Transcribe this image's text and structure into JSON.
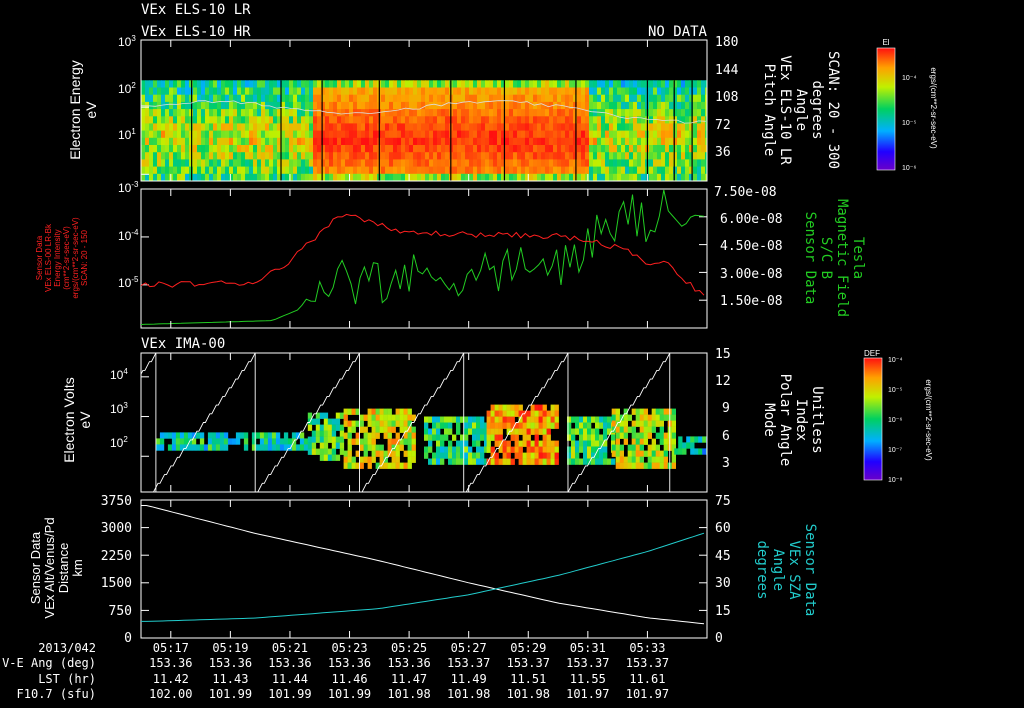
{
  "colors": {
    "background": "#000000",
    "axis": "#ffffff",
    "red": "#ff2020",
    "green": "#22cc22",
    "cyan": "#22cccc",
    "white": "#ffffff"
  },
  "chart_data": [
    {
      "panel": "els-spectrogram",
      "type": "heatmap",
      "title_lines": [
        "VEx ELS-10 LR",
        "VEx ELS-10 HR"
      ],
      "status": "NO DATA",
      "ylabel": [
        "Electron Energy",
        "eV"
      ],
      "yticks": [
        {
          "base": "10",
          "exp": "1"
        },
        {
          "base": "10",
          "exp": "2"
        },
        {
          "base": "10",
          "exp": "3"
        }
      ],
      "right_ticks": [
        "180",
        "144",
        "108",
        "72",
        "36"
      ],
      "right_label": [
        "Pitch Angle",
        "VEx ELS-10 LR",
        "Angle",
        "degrees",
        "SCAN: 20 - 300"
      ],
      "colorbar": {
        "title": "El",
        "label": "ergs/(cm**2-sr-sec-eV)",
        "ticks": [
          "10⁻⁴",
          "10⁻⁵",
          "10⁻⁶"
        ]
      },
      "time_range": [
        "05:16",
        "05:35"
      ],
      "energy_range_log10": [
        0.9,
        2.4
      ],
      "enhanced_interval": [
        "05:21:40",
        "05:31:00"
      ]
    },
    {
      "panel": "energy-intensity-mag",
      "type": "line",
      "left_ticks": [
        {
          "base": "10",
          "exp": "-3"
        },
        {
          "base": "10",
          "exp": "-4"
        },
        {
          "base": "10",
          "exp": "-5"
        }
      ],
      "left_label": [
        "Sensor Data",
        "VEx ELS-00 LR-Bk",
        "Energy Intensity",
        "(cm**2-sr-sec-eV)",
        "ergs/(cm**2-sr-sec-eV)",
        "SCAN: 20 - 150"
      ],
      "right_ticks": [
        "7.50e-08",
        "6.00e-08",
        "4.50e-08",
        "3.00e-08",
        "1.50e-08"
      ],
      "right_label": [
        "Sensor Data",
        "S/C B",
        "Magnetic Field",
        "Tesla"
      ],
      "series": [
        {
          "name": "Energy Intensity (red)",
          "axis": "left",
          "units": "log10",
          "points": [
            [
              5.27,
              -5.0
            ],
            [
              5.33,
              -4.95
            ],
            [
              5.35,
              -4.5
            ],
            [
              5.37,
              -3.8
            ],
            [
              5.38,
              -3.5
            ],
            [
              5.39,
              -3.6
            ],
            [
              5.41,
              -3.9
            ],
            [
              5.45,
              -3.95
            ],
            [
              5.5,
              -3.98
            ],
            [
              5.52,
              -4.1
            ],
            [
              5.54,
              -4.3
            ],
            [
              5.55,
              -4.6
            ],
            [
              5.56,
              -4.5
            ],
            [
              5.57,
              -4.9
            ],
            [
              5.585,
              -5.3
            ]
          ]
        },
        {
          "name": "Magnetic Field (green)",
          "axis": "right",
          "units": "Tesla",
          "points": [
            [
              5.27,
              2e-09
            ],
            [
              5.34,
              4e-09
            ],
            [
              5.355,
              1e-08
            ],
            [
              5.37,
              3e-08
            ],
            [
              5.39,
              2.5e-08
            ],
            [
              5.42,
              2.8e-08
            ],
            [
              5.46,
              3.1e-08
            ],
            [
              5.5,
              3.3e-08
            ],
            [
              5.52,
              4.8e-08
            ],
            [
              5.54,
              6.2e-08
            ],
            [
              5.55,
              5.4e-08
            ],
            [
              5.56,
              6.5e-08
            ],
            [
              5.57,
              5.4e-08
            ],
            [
              5.575,
              6.1e-08
            ],
            [
              5.585,
              6e-08
            ]
          ]
        }
      ]
    },
    {
      "panel": "ima-spectrogram",
      "type": "heatmap",
      "title": "VEx IMA-00",
      "ylabel": [
        "Electron Volts",
        "eV"
      ],
      "yticks": [
        {
          "base": "10",
          "exp": "2"
        },
        {
          "base": "10",
          "exp": "3"
        },
        {
          "base": "10",
          "exp": "4"
        }
      ],
      "right_ticks": [
        "15",
        "12",
        "9",
        "6",
        "3"
      ],
      "right_label": [
        "Mode",
        "Polar Angle",
        "Index",
        "Unitless"
      ],
      "colorbar": {
        "title": "DEF",
        "label": "ergs/(cm**2-sr-sec-eV)",
        "ticks": [
          "10⁻⁴",
          "10⁻⁵",
          "10⁻⁶",
          "10⁻⁷",
          "10⁻⁸"
        ]
      },
      "time_range": [
        "05:16",
        "05:35"
      ],
      "energy_range_log10": [
        1.3,
        4.6
      ],
      "scan_resets": [
        "05:16:30",
        "05:19:50",
        "05:23:20",
        "05:26:50",
        "05:30:20",
        "05:33:45"
      ]
    },
    {
      "panel": "altitude-sza",
      "type": "line",
      "left_ticks": [
        "3750",
        "3000",
        "2250",
        "1500",
        "750",
        "0"
      ],
      "left_label": [
        "Sensor Data",
        "VEx Alt/Venus/Pd",
        "Distance",
        "km"
      ],
      "right_ticks": [
        "75",
        "60",
        "45",
        "30",
        "15",
        "0"
      ],
      "right_label": [
        "Sensor Data",
        "VEx SZA",
        "Angle",
        "degrees"
      ],
      "ylim_left": [
        0,
        3750
      ],
      "ylim_right": [
        0,
        75
      ],
      "series": [
        {
          "name": "VEx Alt/Venus/Pd (white)",
          "axis": "left",
          "units": "km",
          "points": [
            [
              5.27,
              3600
            ],
            [
              5.33,
              2850
            ],
            [
              5.4,
              2100
            ],
            [
              5.45,
              1500
            ],
            [
              5.5,
              950
            ],
            [
              5.55,
              550
            ],
            [
              5.585,
              370
            ]
          ]
        },
        {
          "name": "VEx SZA (cyan)",
          "axis": "right",
          "units": "degrees",
          "points": [
            [
              5.27,
              9
            ],
            [
              5.33,
              10.8
            ],
            [
              5.4,
              16
            ],
            [
              5.45,
              23.5
            ],
            [
              5.5,
              34
            ],
            [
              5.55,
              47
            ],
            [
              5.585,
              58
            ]
          ]
        }
      ]
    }
  ],
  "time_axis": {
    "row_labels": [
      "2013/042",
      "V-E Ang (deg)",
      "LST (hr)",
      "F10.7 (sfu)"
    ],
    "columns": [
      {
        "time": "05:17",
        "vea": "153.36",
        "lst": "11.42",
        "f107": "102.00"
      },
      {
        "time": "05:19",
        "vea": "153.36",
        "lst": "11.43",
        "f107": "101.99"
      },
      {
        "time": "05:21",
        "vea": "153.36",
        "lst": "11.44",
        "f107": "101.99"
      },
      {
        "time": "05:23",
        "vea": "153.36",
        "lst": "11.46",
        "f107": "101.99"
      },
      {
        "time": "05:25",
        "vea": "153.36",
        "lst": "11.47",
        "f107": "101.98"
      },
      {
        "time": "05:27",
        "vea": "153.37",
        "lst": "11.49",
        "f107": "101.98"
      },
      {
        "time": "05:29",
        "vea": "153.37",
        "lst": "11.51",
        "f107": "101.98"
      },
      {
        "time": "05:31",
        "vea": "153.37",
        "lst": "11.55",
        "f107": "101.97"
      },
      {
        "time": "05:33",
        "vea": "153.37",
        "lst": "11.61",
        "f107": "101.97"
      }
    ]
  }
}
